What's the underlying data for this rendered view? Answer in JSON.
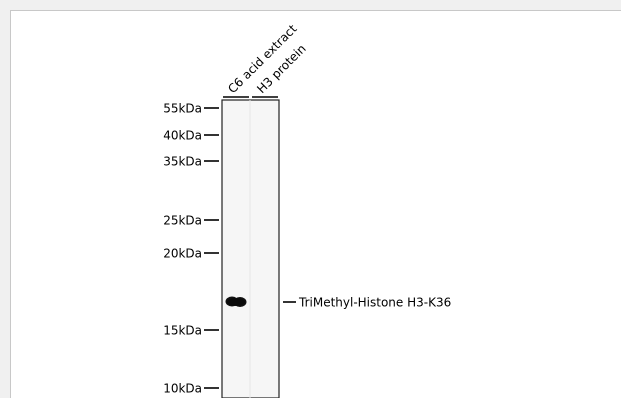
{
  "lanes": [
    {
      "label": "C6 acid extract"
    },
    {
      "label": "H3 protein"
    }
  ],
  "markers": [
    {
      "label": "55kDa",
      "kda": 55
    },
    {
      "label": "40kDa",
      "kda": 40
    },
    {
      "label": "35kDa",
      "kda": 35
    },
    {
      "label": "25kDa",
      "kda": 25
    },
    {
      "label": "20kDa",
      "kda": 20
    },
    {
      "label": "15kDa",
      "kda": 15
    },
    {
      "label": "10kDa",
      "kda": 10
    }
  ],
  "band": {
    "label": "TriMethyl-Histone H3-K36",
    "lane": 0
  },
  "colors": {
    "page_bg": "#f0f0f0",
    "frame_bg": "#ffffff",
    "membrane": "#f6f6f6",
    "band": "#111111"
  }
}
